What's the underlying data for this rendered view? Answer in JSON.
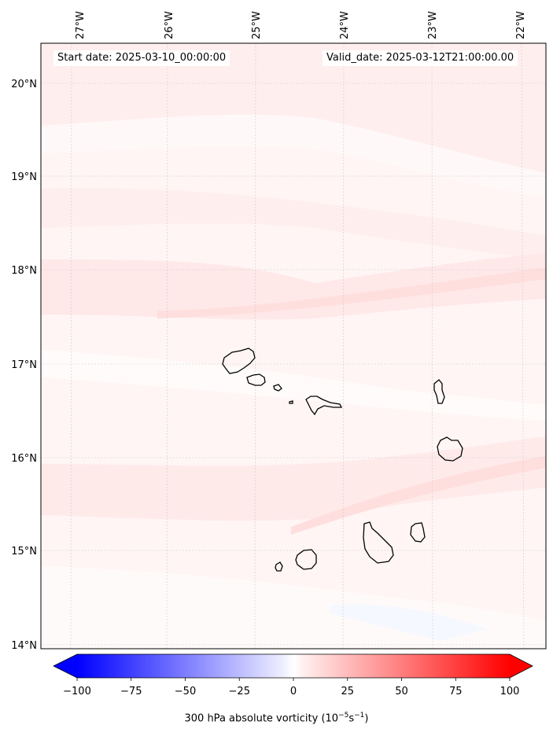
{
  "map": {
    "start_date": "Start date: 2025-03-10_00:00:00",
    "valid_date": "Valid_date: 2025-03-12T21:00:00.00",
    "lon_labels": [
      "27°W",
      "26°W",
      "25°W",
      "24°W",
      "23°W",
      "22°W"
    ],
    "lat_labels": [
      "20°N",
      "19°N",
      "18°N",
      "17°N",
      "16°N",
      "15°N",
      "14°N"
    ],
    "extent": {
      "lon": [
        -27.35,
        -21.7
      ],
      "lat": [
        13.95,
        20.4
      ]
    }
  },
  "colorbar": {
    "label_prefix": "300 hPa absolute vorticity (10",
    "label_exp1": "−5",
    "label_mid": "s",
    "label_exp2": "−1",
    "label_suffix": ")",
    "ticks": [
      "−100",
      "−75",
      "−50",
      "−25",
      "0",
      "25",
      "50",
      "75",
      "100"
    ],
    "range": [
      -100,
      100
    ],
    "colors": {
      "negative": "#0000ff",
      "zero": "#ffffff",
      "positive": "#ff0000"
    }
  }
}
